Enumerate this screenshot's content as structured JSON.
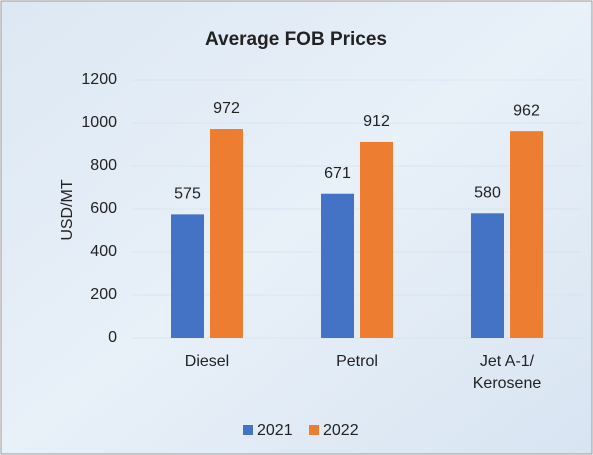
{
  "chart_data": {
    "type": "bar",
    "title": "Average FOB Prices",
    "y_label": "USD/MT",
    "categories": [
      "Diesel",
      "Petrol",
      "Jet A-1/ Kerosene"
    ],
    "series": [
      {
        "name": "2021",
        "color": "#4472c4",
        "values": [
          575,
          671,
          580
        ]
      },
      {
        "name": "2022",
        "color": "#ed7d31",
        "values": [
          972,
          912,
          962
        ]
      }
    ],
    "ylim": [
      0,
      1200
    ],
    "yticks": [
      0,
      200,
      400,
      600,
      800,
      1000,
      1200
    ],
    "legend": "bottom"
  }
}
